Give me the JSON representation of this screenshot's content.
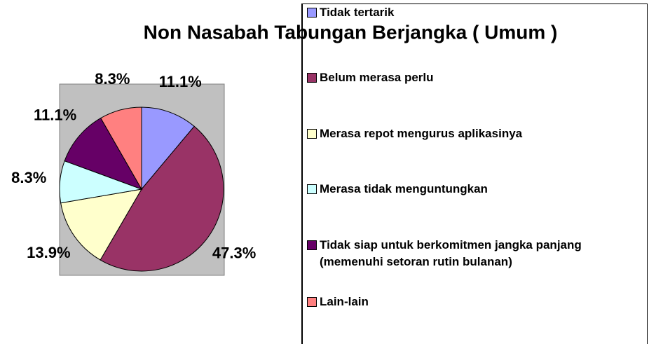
{
  "chart_data": {
    "type": "pie",
    "title": "Non Nasabah Tabungan Berjangka ( Umum )",
    "categories": [
      "Tidak tertarik",
      "Belum merasa perlu",
      "Merasa repot mengurus aplikasinya",
      "Merasa tidak menguntungkan",
      "Tidak siap untuk berkomitmen jangka panjang (memenuhi setoran rutin bulanan)",
      "Lain-lain"
    ],
    "values": [
      11.1,
      47.3,
      13.9,
      8.3,
      11.1,
      8.3
    ],
    "value_labels": [
      "11.1%",
      "47.3%",
      "13.9%",
      "8.3%",
      "11.1%",
      "8.3%"
    ],
    "colors": [
      "#9999ff",
      "#993366",
      "#ffffcc",
      "#ccffff",
      "#660066",
      "#ff8080"
    ]
  }
}
